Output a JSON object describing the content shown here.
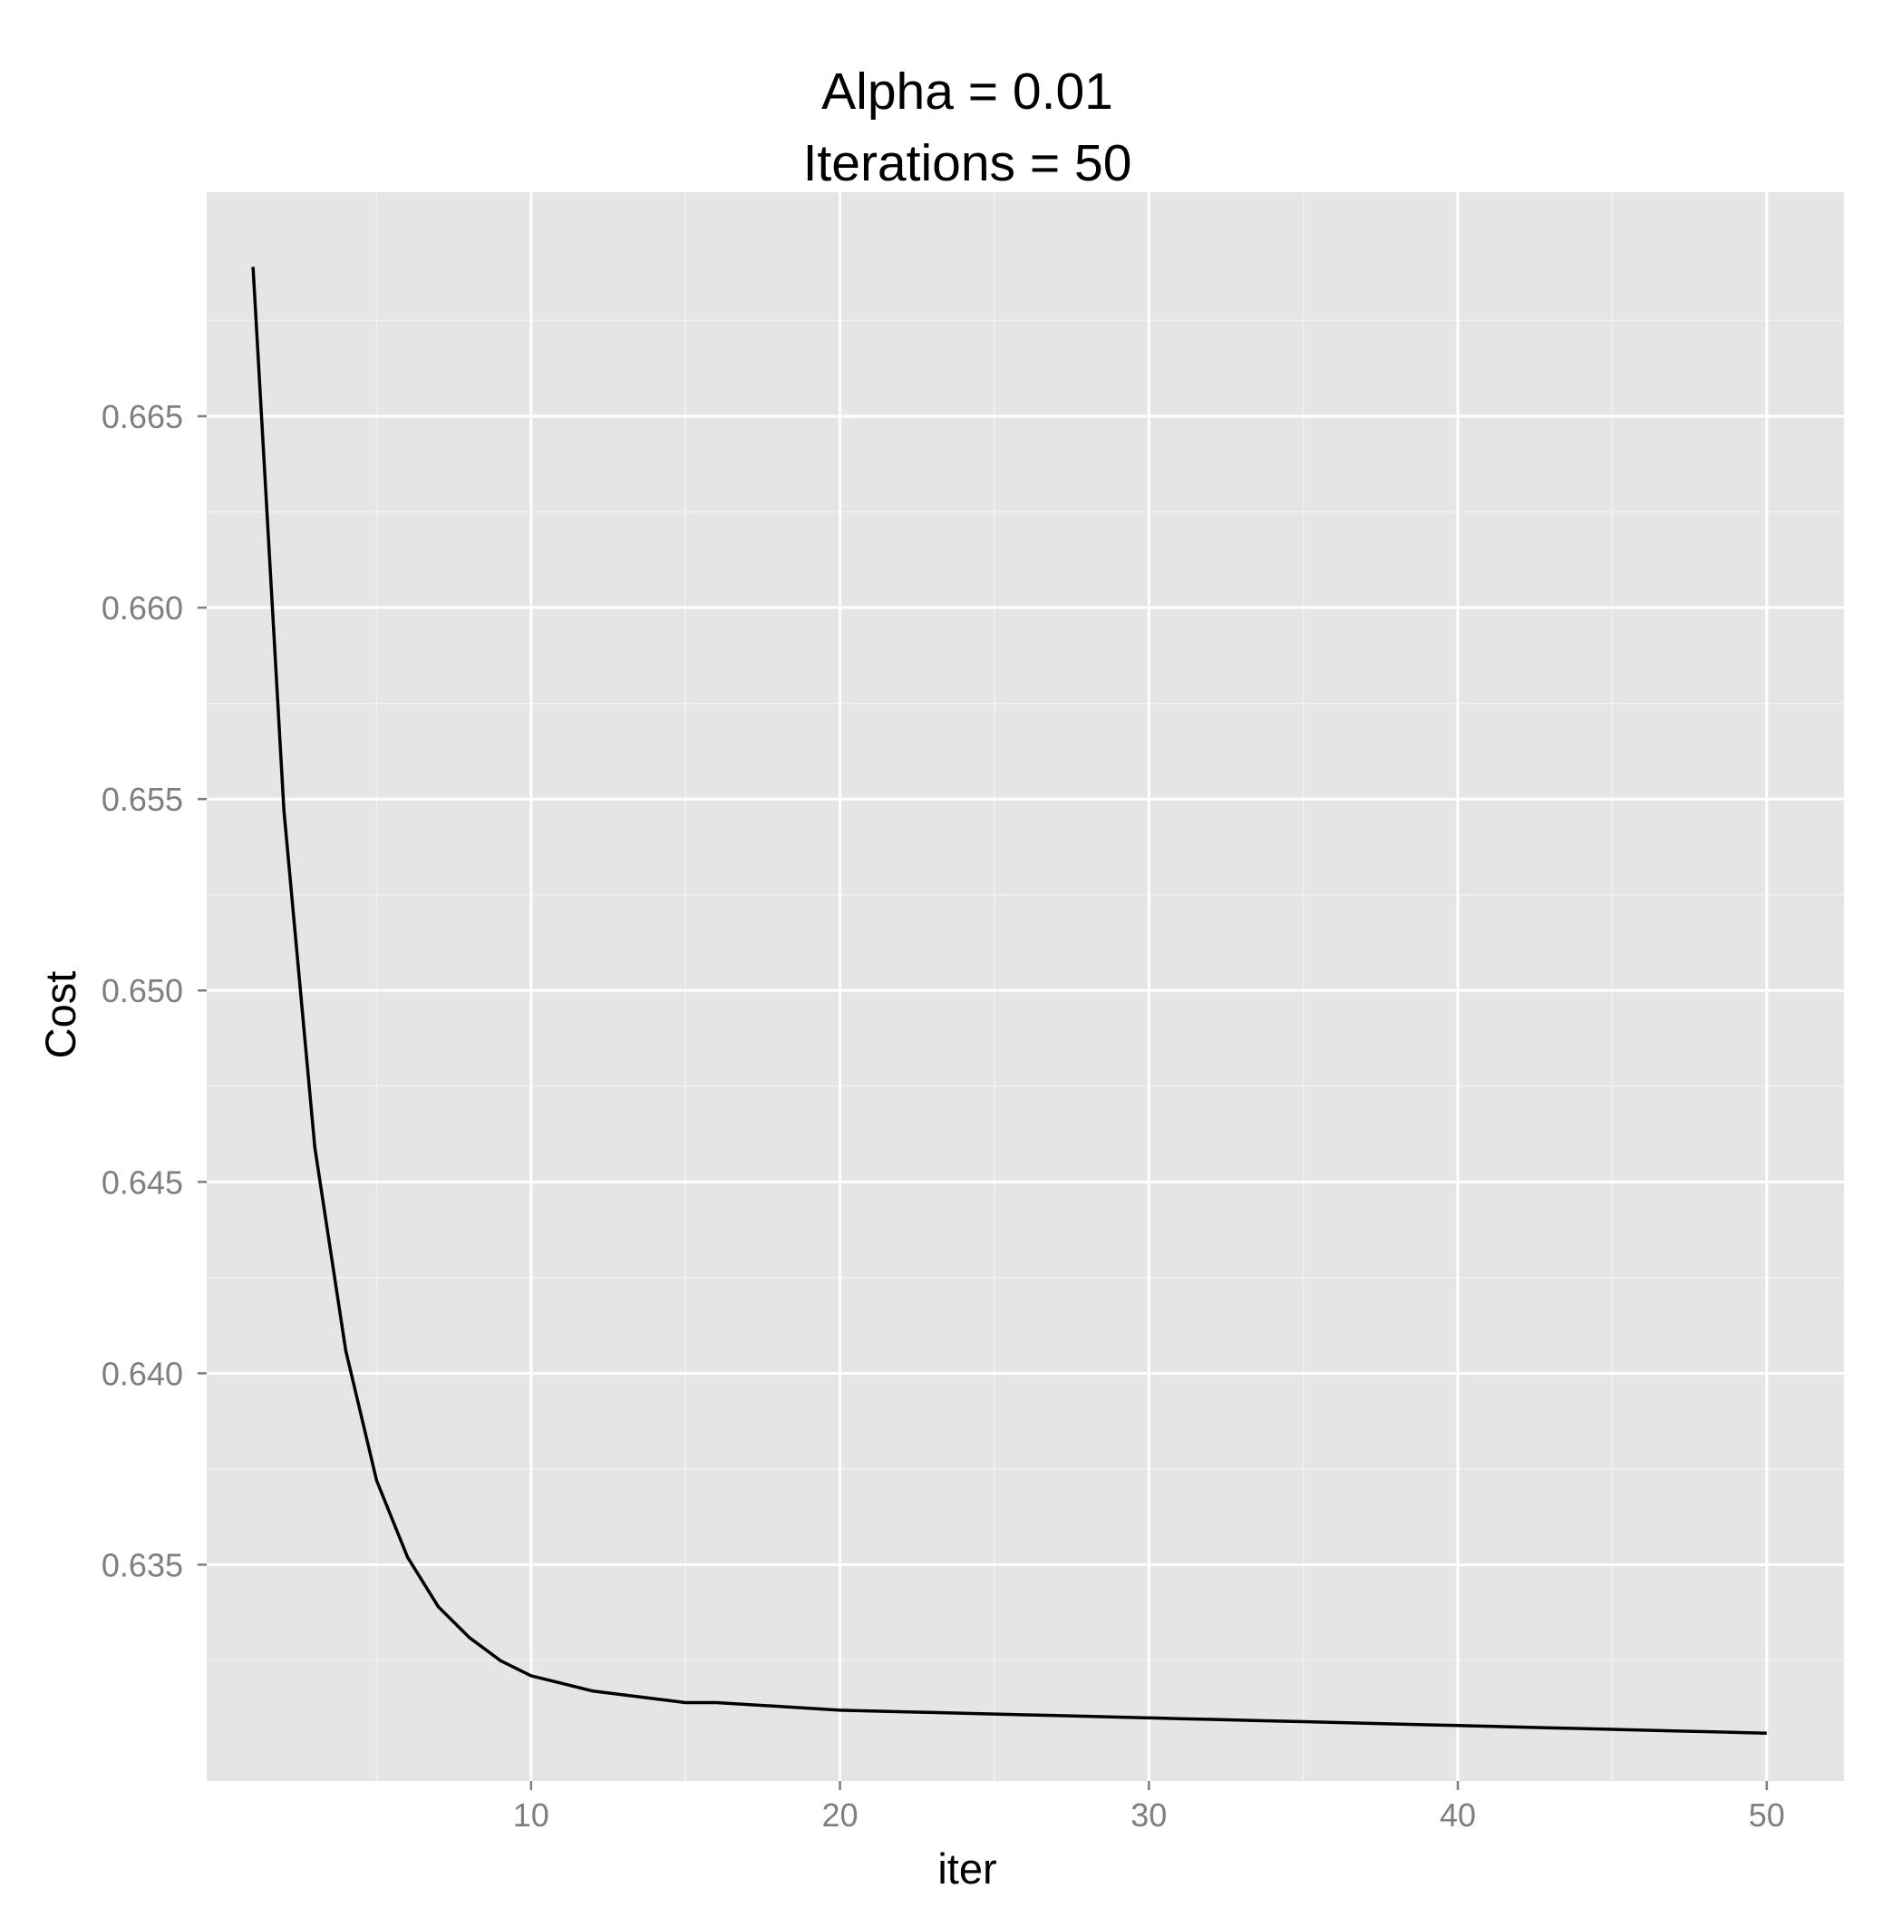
{
  "colors": {
    "panel_background": "#e5e5e5",
    "grid_major": "#ffffff",
    "grid_minor": "#f2f2f2",
    "line": "#000000",
    "tick_label": "#7f7f7f",
    "tick_mark": "#7f7f7f"
  },
  "chart_data": {
    "type": "line",
    "title": [
      "Alpha = 0.01",
      "Iterations = 50"
    ],
    "xlabel": "iter",
    "ylabel": "Cost",
    "xlim": [
      -0.5,
      52.5
    ],
    "ylim": [
      0.62935,
      0.67085
    ],
    "x_ticks": [
      10,
      20,
      30,
      40,
      50
    ],
    "x_tick_labels": [
      "10",
      "20",
      "30",
      "40",
      "50"
    ],
    "y_ticks": [
      0.635,
      0.64,
      0.645,
      0.65,
      0.655,
      0.66,
      0.665
    ],
    "y_tick_labels": [
      "0.635",
      "0.640",
      "0.645",
      "0.650",
      "0.655",
      "0.660",
      "0.665"
    ],
    "grid": true,
    "legend": "none",
    "series": [
      {
        "x": [
          1,
          2,
          3,
          4,
          5,
          6,
          7,
          8,
          9,
          10,
          11,
          12,
          13,
          14,
          15,
          16,
          17,
          18,
          19,
          20,
          21,
          22,
          23,
          24,
          25,
          26,
          27,
          28,
          29,
          30,
          31,
          32,
          33,
          34,
          35,
          36,
          37,
          38,
          39,
          40,
          41,
          42,
          43,
          44,
          45,
          46,
          47,
          48,
          49,
          50
        ],
        "y": [
          0.6689,
          0.6547,
          0.6459,
          0.6406,
          0.6372,
          0.6352,
          0.6339,
          0.6331,
          0.6325,
          0.6321,
          0.6319,
          0.6317,
          0.6316,
          0.6315,
          0.6314,
          0.6314,
          0.63135,
          0.6313,
          0.63125,
          0.6312,
          0.63118,
          0.63116,
          0.63114,
          0.63112,
          0.6311,
          0.63108,
          0.63106,
          0.63104,
          0.63102,
          0.631,
          0.63098,
          0.63096,
          0.63094,
          0.63092,
          0.6309,
          0.63088,
          0.63086,
          0.63084,
          0.63082,
          0.6308,
          0.63078,
          0.63076,
          0.63074,
          0.63072,
          0.6307,
          0.63068,
          0.63066,
          0.63064,
          0.63062,
          0.6306
        ]
      }
    ]
  }
}
